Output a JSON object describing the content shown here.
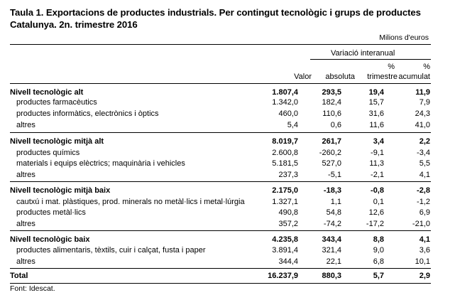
{
  "title_line1": "Taula 1. Exportacions de productes industrials. Per contingut tecnològic i grups de productes",
  "title_line2": "Catalunya. 2n. trimestre 2016",
  "units": "Milions d'euros",
  "header": {
    "group": "Variació interanual",
    "pct1": "%",
    "pct2": "%",
    "valor": "Valor",
    "absoluta": "absoluta",
    "trimestre": "trimestre",
    "acumulat": "acumulat"
  },
  "groups": [
    {
      "label": "Nivell tecnològic alt",
      "values": [
        "1.807,4",
        "293,5",
        "19,4",
        "11,9"
      ],
      "items": [
        {
          "label": "productes farmacèutics",
          "values": [
            "1.342,0",
            "182,4",
            "15,7",
            "7,9"
          ]
        },
        {
          "label": "productes informàtics, electrònics i òptics",
          "values": [
            "460,0",
            "110,6",
            "31,6",
            "24,3"
          ]
        },
        {
          "label": "altres",
          "values": [
            "5,4",
            "0,6",
            "11,6",
            "41,0"
          ]
        }
      ]
    },
    {
      "label": "Nivell tecnològic mitjà alt",
      "values": [
        "8.019,7",
        "261,7",
        "3,4",
        "2,2"
      ],
      "items": [
        {
          "label": "productes químics",
          "values": [
            "2.600,8",
            "-260,2",
            "-9,1",
            "-3,4"
          ]
        },
        {
          "label": "materials i equips elèctrics; maquinària i vehicles",
          "values": [
            "5.181,5",
            "527,0",
            "11,3",
            "5,5"
          ]
        },
        {
          "label": "altres",
          "values": [
            "237,3",
            "-5,1",
            "-2,1",
            "4,1"
          ]
        }
      ]
    },
    {
      "label": "Nivell tecnològic mitjà baix",
      "values": [
        "2.175,0",
        "-18,3",
        "-0,8",
        "-2,8"
      ],
      "items": [
        {
          "label": "cautxú i mat. plàstiques, prod. minerals no metàl·lics i metal·lúrgia",
          "values": [
            "1.327,1",
            "1,1",
            "0,1",
            "-1,2"
          ]
        },
        {
          "label": "productes metàl·lics",
          "values": [
            "490,8",
            "54,8",
            "12,6",
            "6,9"
          ]
        },
        {
          "label": "altres",
          "values": [
            "357,2",
            "-74,2",
            "-17,2",
            "-21,0"
          ]
        }
      ]
    },
    {
      "label": "Nivell tecnològic baix",
      "values": [
        "4.235,8",
        "343,4",
        "8,8",
        "4,1"
      ],
      "items": [
        {
          "label": "productes alimentaris, tèxtils, cuir i calçat, fusta i paper",
          "values": [
            "3.891,4",
            "321,4",
            "9,0",
            "3,6"
          ]
        },
        {
          "label": "altres",
          "values": [
            "344,4",
            "22,1",
            "6,8",
            "10,1"
          ]
        }
      ]
    }
  ],
  "total": {
    "label": "Total",
    "values": [
      "16.237,9",
      "880,3",
      "5,7",
      "2,9"
    ]
  },
  "source": "Font: Idescat."
}
